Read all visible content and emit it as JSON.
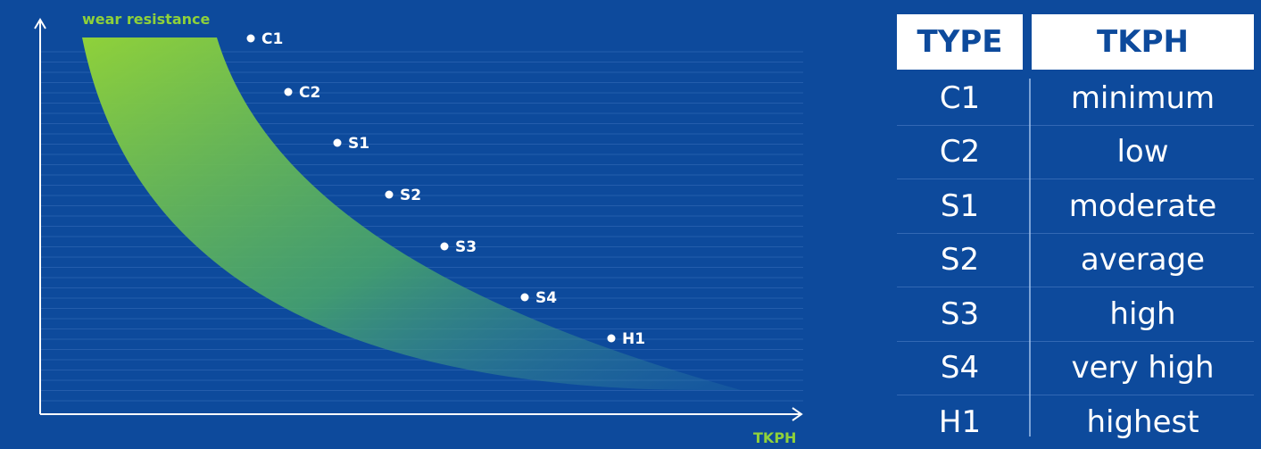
{
  "chart_data": {
    "type": "scatter",
    "xlabel": "TKPH",
    "ylabel": "wear resistance",
    "points": [
      "C1",
      "C2",
      "S1",
      "S2",
      "S3",
      "S4",
      "H1"
    ],
    "band": "decreasing",
    "grid": true,
    "legend": "none",
    "colors": {
      "band_start": "#8fd13a",
      "band_end": "#0d4a9c",
      "axis": "#ffffff",
      "label": "#8fd13a"
    }
  },
  "table": {
    "headers": [
      "TYPE",
      "TKPH"
    ],
    "rows": [
      {
        "type": "C1",
        "tkph": "minimum"
      },
      {
        "type": "C2",
        "tkph": "low"
      },
      {
        "type": "S1",
        "tkph": "moderate"
      },
      {
        "type": "S2",
        "tkph": "average"
      },
      {
        "type": "S3",
        "tkph": "high"
      },
      {
        "type": "S4",
        "tkph": "very high"
      },
      {
        "type": "H1",
        "tkph": "highest"
      }
    ]
  },
  "colors": {
    "background": "#0d4a9c",
    "header_bg": "#ffffff",
    "header_text": "#0d4a9c"
  }
}
